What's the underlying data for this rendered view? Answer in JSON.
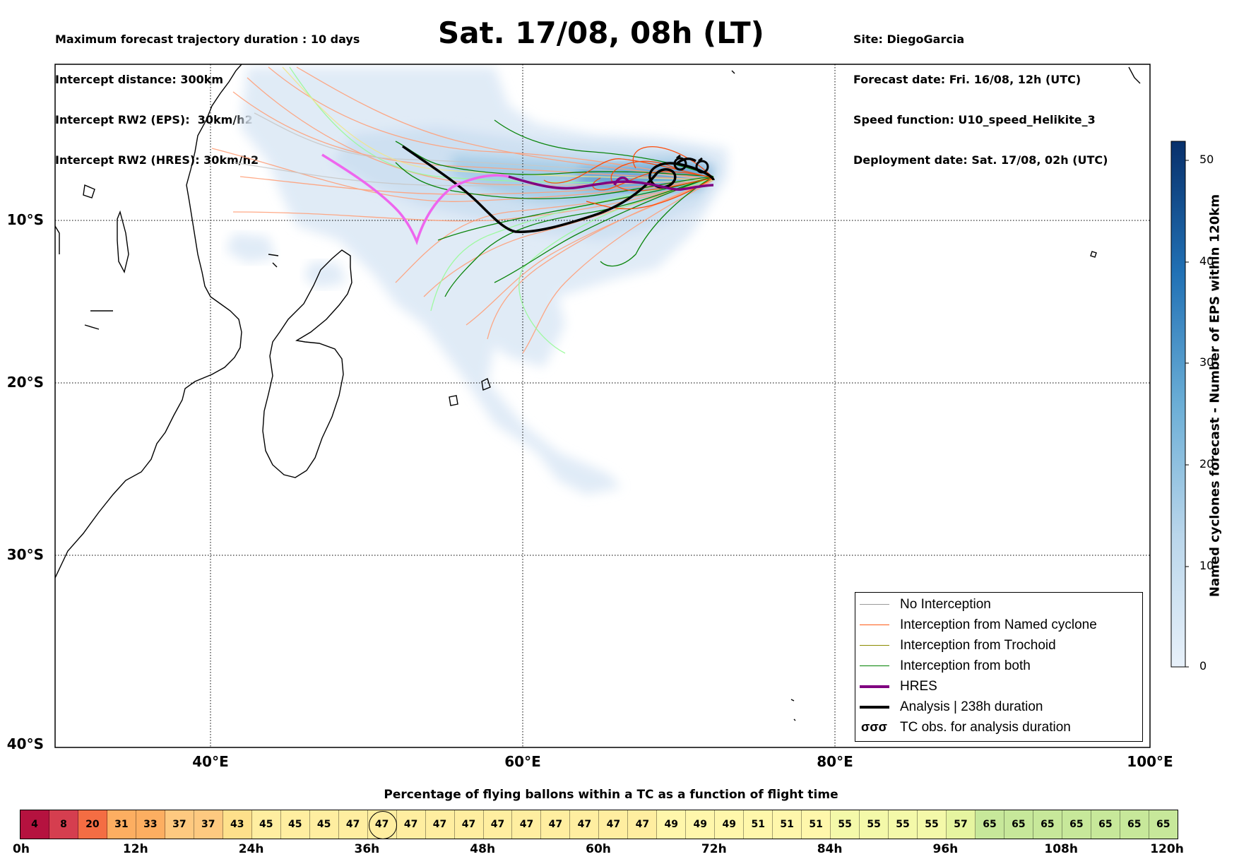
{
  "header_left": [
    "Maximum forecast trajectory duration : 10 days",
    "Intercept distance: 300km",
    "Intercept RW2 (EPS):  30km/h2",
    "Intercept RW2 (HRES): 30km/h2"
  ],
  "title": "Sat. 17/08, 08h (LT)",
  "header_right": [
    "Site: DiegoGarcia",
    "Forecast date: Fri. 16/08, 12h (UTC)",
    "Speed function: U10_speed_Helikite_3",
    "Deployment date: Sat. 17/08, 02h (UTC)"
  ],
  "map": {
    "lat_labels": [
      "10°S",
      "20°S",
      "30°S",
      "40°S"
    ],
    "lon_labels": [
      "40°E",
      "60°E",
      "80°E",
      "100°E"
    ],
    "extent": {
      "lon": [
        30,
        100
      ],
      "lat": [
        -40,
        -0.3
      ]
    }
  },
  "colorbar": {
    "label": "Named cyclones forecast - Number of EPS within 120km",
    "ticks": [
      "0",
      "10",
      "20",
      "30",
      "40",
      "50"
    ],
    "colors": [
      "#e4eef8",
      "#08306b"
    ]
  },
  "legend": [
    {
      "label": "No Interception",
      "color": "#999999",
      "marker": "line-thin"
    },
    {
      "label": "Interception from Named cyclone",
      "color": "#ff5a14",
      "marker": "line-thin"
    },
    {
      "label": "Interception from Trochoid",
      "color": "#8b8b00",
      "marker": "line-thin"
    },
    {
      "label": "Interception from both",
      "color": "#008000",
      "marker": "line-thin"
    },
    {
      "label": "HRES",
      "color": "#800080",
      "marker": "line-thick"
    },
    {
      "label": "Analysis | 238h duration",
      "color": "#000000",
      "marker": "line-thick"
    },
    {
      "label": "TC obs. for analysis duration",
      "color": "#000000",
      "marker": "tc-symbols"
    }
  ],
  "strip": {
    "title": "Percentage of flying ballons within a TC as a function of flight time",
    "values": [
      "4",
      "8",
      "20",
      "31",
      "33",
      "37",
      "37",
      "43",
      "45",
      "45",
      "45",
      "47",
      "47",
      "47",
      "47",
      "47",
      "47",
      "47",
      "47",
      "47",
      "47",
      "47",
      "49",
      "49",
      "49",
      "51",
      "51",
      "51",
      "55",
      "55",
      "55",
      "55",
      "57",
      "65",
      "65",
      "65",
      "65",
      "65",
      "65",
      "65"
    ],
    "highlighted": "47",
    "time_ticks": [
      "0h",
      "12h",
      "24h",
      "36h",
      "48h",
      "60h",
      "72h",
      "84h",
      "96h",
      "108h",
      "120h"
    ]
  },
  "tc_symbol": "σσσ"
}
